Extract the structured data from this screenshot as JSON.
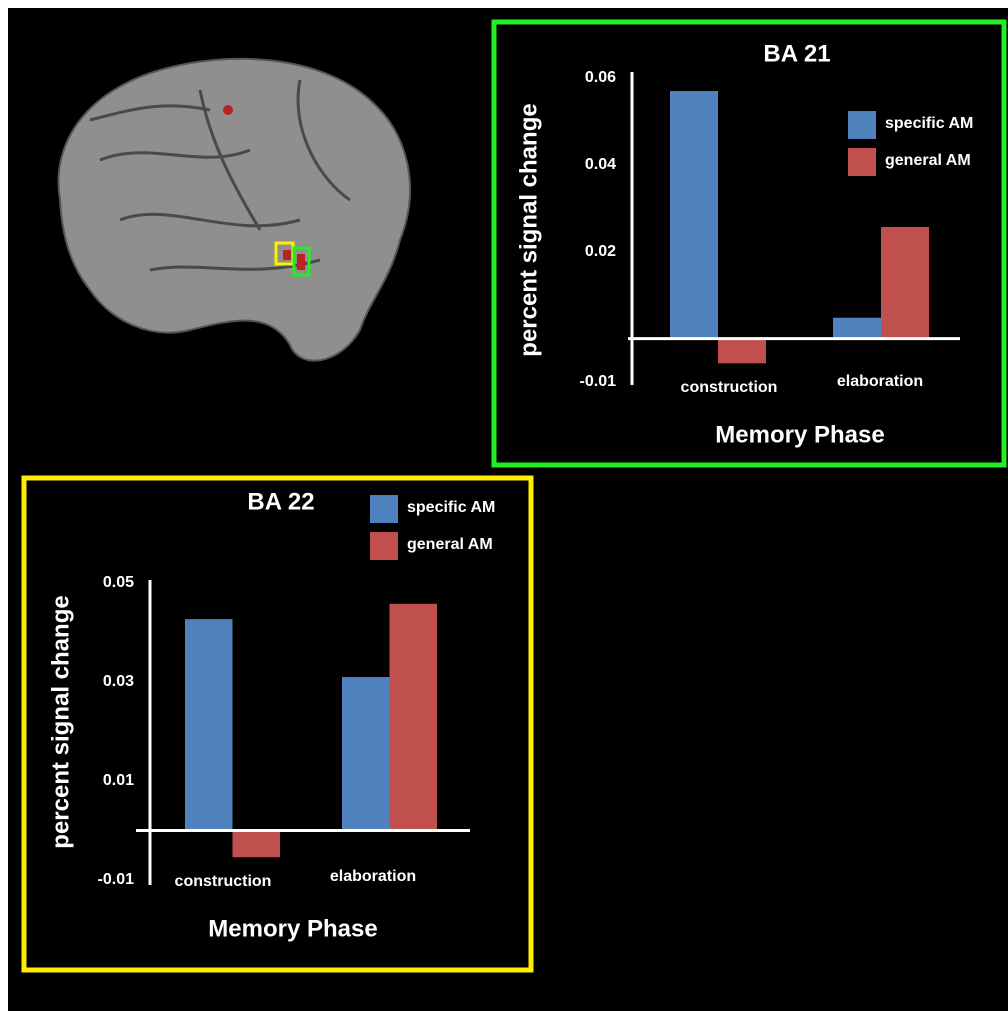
{
  "chart_data": [
    {
      "type": "bar",
      "title": "BA 21",
      "x_label": "Memory Phase",
      "y_label": "percent signal change",
      "categories": [
        "construction",
        "elaboration"
      ],
      "series": [
        {
          "name": "specific AM",
          "color": "#4f81bd",
          "values": [
            0.057,
            0.0048
          ]
        },
        {
          "name": "general AM",
          "color": "#c0504d",
          "values": [
            -0.0057,
            0.0257
          ]
        }
      ],
      "ylim": [
        -0.01,
        0.06
      ],
      "yticks": [
        -0.01,
        0.02,
        0.04,
        0.06
      ],
      "frame_color": "#22ee22"
    },
    {
      "type": "bar",
      "title": "BA 22",
      "x_label": "Memory Phase",
      "y_label": "percent signal change",
      "categories": [
        "construction",
        "elaboration"
      ],
      "series": [
        {
          "name": "specific AM",
          "color": "#4f81bd",
          "values": [
            0.0427,
            0.031
          ]
        },
        {
          "name": "general AM",
          "color": "#c0504d",
          "values": [
            -0.0054,
            0.0458
          ]
        }
      ],
      "ylim": [
        -0.01,
        0.05
      ],
      "yticks": [
        -0.01,
        0.01,
        0.03,
        0.05
      ],
      "frame_color": "#ffee00"
    }
  ]
}
